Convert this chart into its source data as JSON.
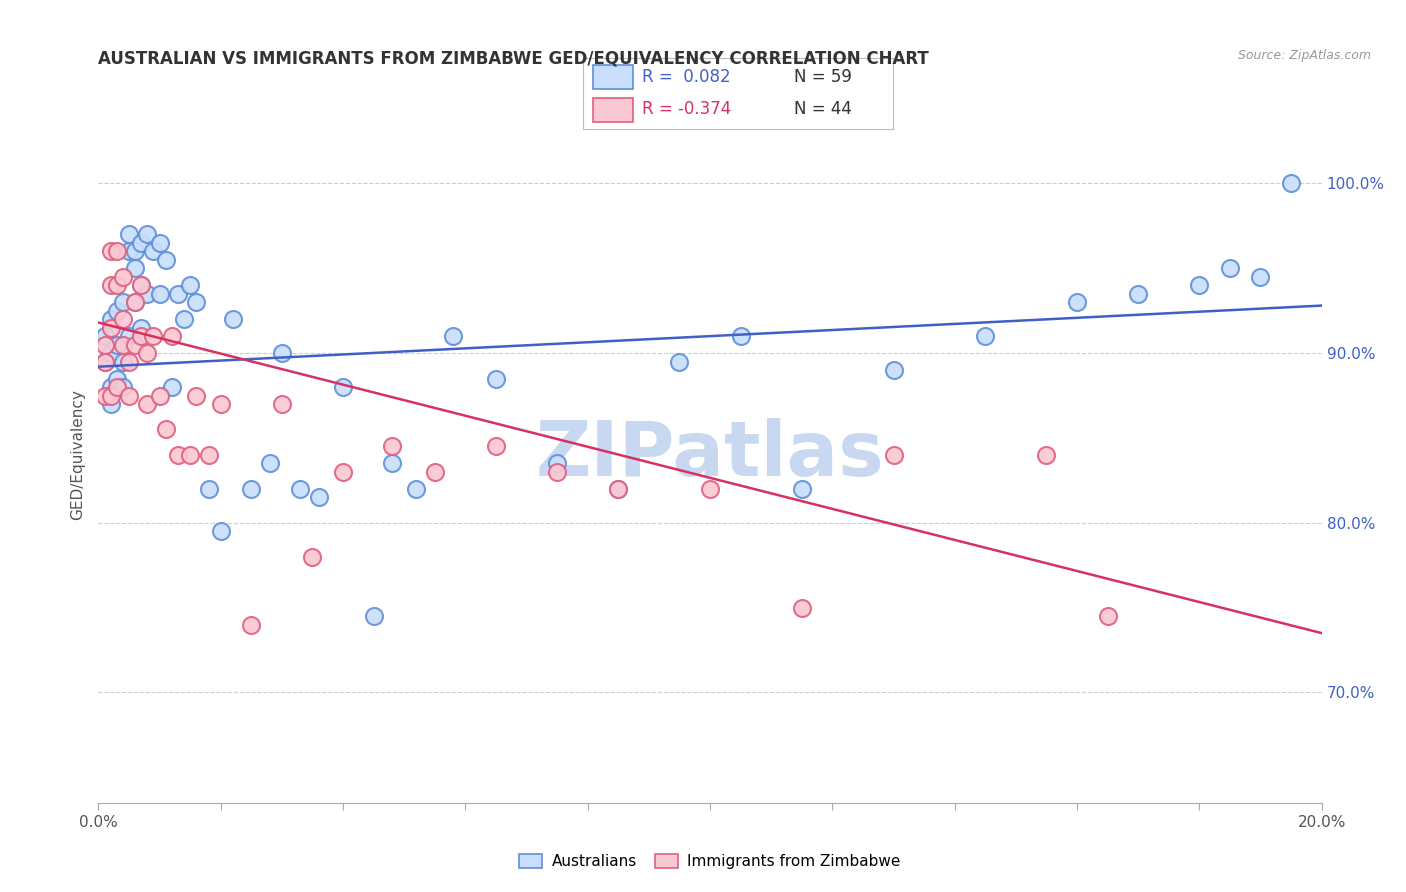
{
  "title": "AUSTRALIAN VS IMMIGRANTS FROM ZIMBABWE GED/EQUIVALENCY CORRELATION CHART",
  "source": "Source: ZipAtlas.com",
  "ylabel": "GED/Equivalency",
  "ytick_values": [
    0.7,
    0.8,
    0.9,
    1.0
  ],
  "legend_blue_r": "R =  0.082",
  "legend_blue_n": "N = 59",
  "legend_pink_r": "R = -0.374",
  "legend_pink_n": "N = 44",
  "blue_fill": "#C8DEFA",
  "blue_edge": "#6090D8",
  "pink_fill": "#FAC8D2",
  "pink_edge": "#E06080",
  "blue_line_color": "#4060C8",
  "pink_line_color": "#D83060",
  "blue_r_color": "#4060C8",
  "pink_r_color": "#D83060",
  "n_color": "#333333",
  "watermark": "ZIPatlas",
  "watermark_color": "#C8D8F0",
  "background_color": "#FFFFFF",
  "blue_scatter_x": [
    0.001,
    0.001,
    0.002,
    0.002,
    0.002,
    0.002,
    0.003,
    0.003,
    0.003,
    0.004,
    0.004,
    0.004,
    0.005,
    0.005,
    0.005,
    0.006,
    0.006,
    0.006,
    0.007,
    0.007,
    0.007,
    0.008,
    0.008,
    0.009,
    0.01,
    0.01,
    0.011,
    0.012,
    0.013,
    0.014,
    0.015,
    0.016,
    0.018,
    0.02,
    0.022,
    0.025,
    0.028,
    0.03,
    0.033,
    0.036,
    0.04,
    0.045,
    0.048,
    0.052,
    0.058,
    0.065,
    0.075,
    0.085,
    0.095,
    0.105,
    0.115,
    0.13,
    0.145,
    0.16,
    0.17,
    0.18,
    0.185,
    0.19,
    0.195
  ],
  "blue_scatter_y": [
    0.895,
    0.91,
    0.9,
    0.92,
    0.88,
    0.87,
    0.925,
    0.905,
    0.885,
    0.93,
    0.895,
    0.88,
    0.97,
    0.96,
    0.91,
    0.95,
    0.93,
    0.96,
    0.965,
    0.915,
    0.94,
    0.97,
    0.935,
    0.96,
    0.935,
    0.965,
    0.955,
    0.88,
    0.935,
    0.92,
    0.94,
    0.93,
    0.82,
    0.795,
    0.92,
    0.82,
    0.835,
    0.9,
    0.82,
    0.815,
    0.88,
    0.745,
    0.835,
    0.82,
    0.91,
    0.885,
    0.835,
    0.82,
    0.895,
    0.91,
    0.82,
    0.89,
    0.91,
    0.93,
    0.935,
    0.94,
    0.95,
    0.945,
    1.0
  ],
  "pink_scatter_x": [
    0.001,
    0.001,
    0.001,
    0.002,
    0.002,
    0.002,
    0.002,
    0.003,
    0.003,
    0.003,
    0.004,
    0.004,
    0.004,
    0.005,
    0.005,
    0.006,
    0.006,
    0.007,
    0.007,
    0.008,
    0.008,
    0.009,
    0.01,
    0.011,
    0.012,
    0.013,
    0.015,
    0.016,
    0.018,
    0.02,
    0.025,
    0.03,
    0.035,
    0.04,
    0.048,
    0.055,
    0.065,
    0.075,
    0.085,
    0.1,
    0.115,
    0.13,
    0.155,
    0.165
  ],
  "pink_scatter_y": [
    0.905,
    0.895,
    0.875,
    0.96,
    0.94,
    0.915,
    0.875,
    0.96,
    0.94,
    0.88,
    0.945,
    0.92,
    0.905,
    0.895,
    0.875,
    0.93,
    0.905,
    0.94,
    0.91,
    0.9,
    0.87,
    0.91,
    0.875,
    0.855,
    0.91,
    0.84,
    0.84,
    0.875,
    0.84,
    0.87,
    0.74,
    0.87,
    0.78,
    0.83,
    0.845,
    0.83,
    0.845,
    0.83,
    0.82,
    0.82,
    0.75,
    0.84,
    0.84,
    0.745
  ],
  "xmin": 0.0,
  "xmax": 0.2,
  "ymin": 0.635,
  "ymax": 1.045,
  "blue_trend_x": [
    0.0,
    0.2
  ],
  "blue_trend_y": [
    0.892,
    0.928
  ],
  "pink_trend_x": [
    0.0,
    0.2
  ],
  "pink_trend_y": [
    0.918,
    0.735
  ]
}
